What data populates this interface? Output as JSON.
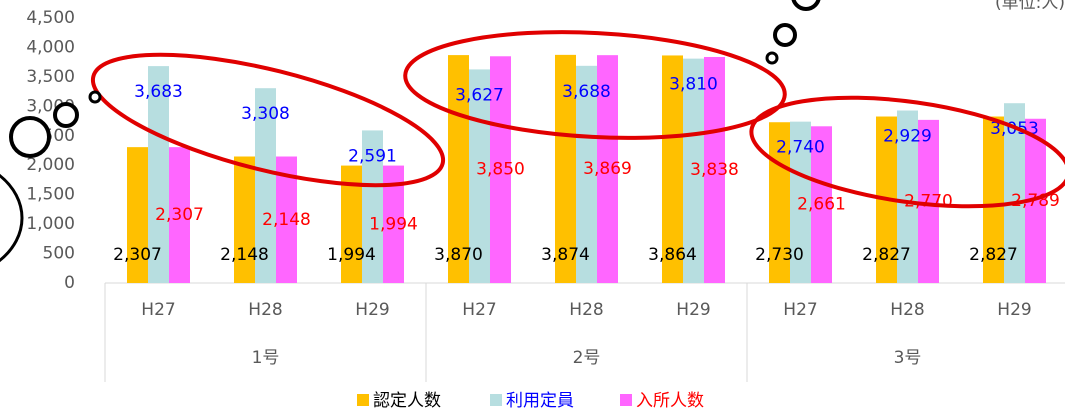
{
  "chart_data": {
    "type": "bar",
    "unit_label": "(単位:人)",
    "categories": [
      "H27",
      "H28",
      "H29",
      "H27",
      "H28",
      "H29",
      "H27",
      "H28",
      "H29"
    ],
    "groups": [
      "1号",
      "2号",
      "3号"
    ],
    "series": [
      {
        "name": "認定人数",
        "color": "#FFC000",
        "label_color": "#000000",
        "values": [
          2307,
          2148,
          1994,
          3870,
          3874,
          3864,
          2730,
          2827,
          2827
        ],
        "value_labels": [
          "2,307",
          "2,148",
          "1,994",
          "3,870",
          "3,874",
          "3,864",
          "2,730",
          "2,827",
          "2,827"
        ]
      },
      {
        "name": "利用定員",
        "color": "#B7DEE0",
        "label_color": "#0000FF",
        "values": [
          3683,
          3308,
          2591,
          3627,
          3688,
          3810,
          2740,
          2929,
          3053
        ],
        "value_labels": [
          "3,683",
          "3,308",
          "2,591",
          "3,627",
          "3,688",
          "3,810",
          "2,740",
          "2,929",
          "3,053"
        ]
      },
      {
        "name": "入所人数",
        "color": "#FF66FF",
        "label_color": "#FF0000",
        "values": [
          2307,
          2148,
          1994,
          3850,
          3869,
          3838,
          2661,
          2770,
          2789
        ],
        "value_labels": [
          "2,307",
          "2,148",
          "1,994",
          "3,850",
          "3,869",
          "3,838",
          "2,661",
          "2,770",
          "2,789"
        ]
      }
    ],
    "ylim": [
      0,
      4500
    ],
    "yticks": [
      0,
      500,
      {
        "value": 1000,
        "label": "1,000"
      },
      {
        "value": 1500,
        "label": "1,500"
      },
      {
        "value": 2000,
        "label": "2,000"
      },
      {
        "value": 2500,
        "label": "2,500"
      },
      {
        "value": 3000,
        "label": "3,000"
      },
      {
        "value": 3500,
        "label": "3,500"
      },
      {
        "value": 4000,
        "label": "4,000"
      },
      {
        "value": 4500,
        "label": "4,500"
      }
    ],
    "grid": false,
    "legend": "bottom"
  }
}
